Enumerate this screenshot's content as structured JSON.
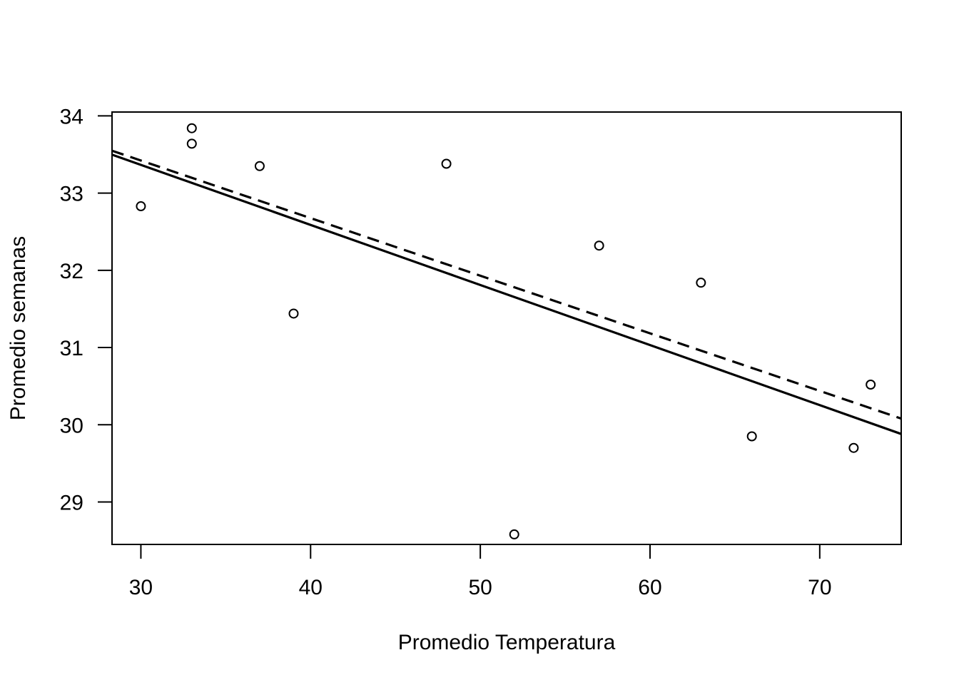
{
  "chart_data": {
    "type": "scatter",
    "title": "",
    "xlabel": "Promedio Temperatura",
    "ylabel": "Promedio semanas",
    "xlim": [
      28.3,
      74.8
    ],
    "ylim": [
      28.45,
      34.05
    ],
    "x_ticks": [
      30,
      40,
      50,
      60,
      70
    ],
    "y_ticks": [
      29,
      30,
      31,
      32,
      33,
      34
    ],
    "grid": false,
    "legend": "none",
    "points": [
      {
        "x": 30,
        "y": 32.83
      },
      {
        "x": 33,
        "y": 33.84
      },
      {
        "x": 33,
        "y": 33.64
      },
      {
        "x": 37,
        "y": 33.35
      },
      {
        "x": 39,
        "y": 31.44
      },
      {
        "x": 48,
        "y": 33.38
      },
      {
        "x": 52,
        "y": 28.58
      },
      {
        "x": 57,
        "y": 32.32
      },
      {
        "x": 63,
        "y": 31.84
      },
      {
        "x": 66,
        "y": 29.85
      },
      {
        "x": 72,
        "y": 29.7
      },
      {
        "x": 73,
        "y": 30.52
      }
    ],
    "lines": [
      {
        "style": "solid",
        "intercept": 35.7,
        "slope": -0.0778
      },
      {
        "style": "dashed",
        "intercept": 35.66,
        "slope": -0.0746
      }
    ],
    "colors": {
      "ink": "#000000",
      "background": "#ffffff"
    }
  }
}
